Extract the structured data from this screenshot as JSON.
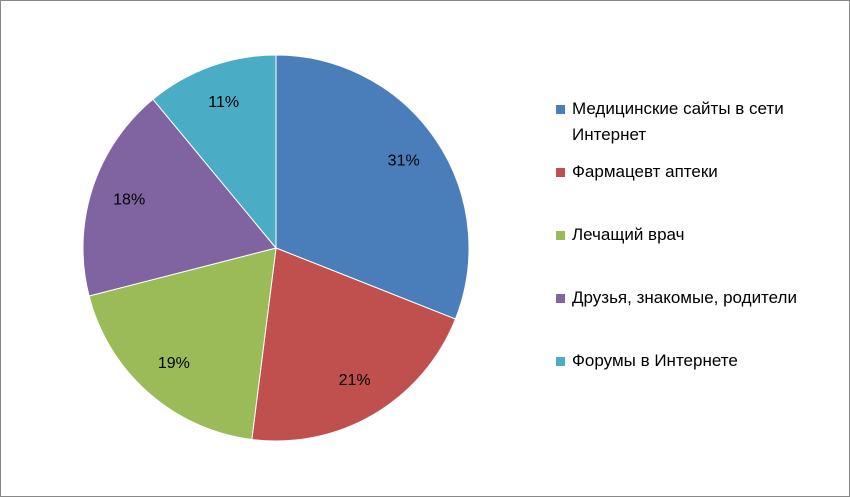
{
  "chart_data": {
    "type": "pie",
    "categories": [
      "Медицинские сайты в сети Интернет",
      "Фармацевт аптеки",
      "Лечащий врач",
      "Друзья, знакомые, родители",
      "Форумы в Интернете"
    ],
    "values": [
      31,
      21,
      19,
      18,
      11
    ],
    "value_labels": [
      "31%",
      "21%",
      "19%",
      "18%",
      "11%"
    ],
    "colors": [
      "#4a7ebb",
      "#c0504d",
      "#9bbb59",
      "#8064a2",
      "#4bacc6"
    ],
    "legend": "right"
  }
}
